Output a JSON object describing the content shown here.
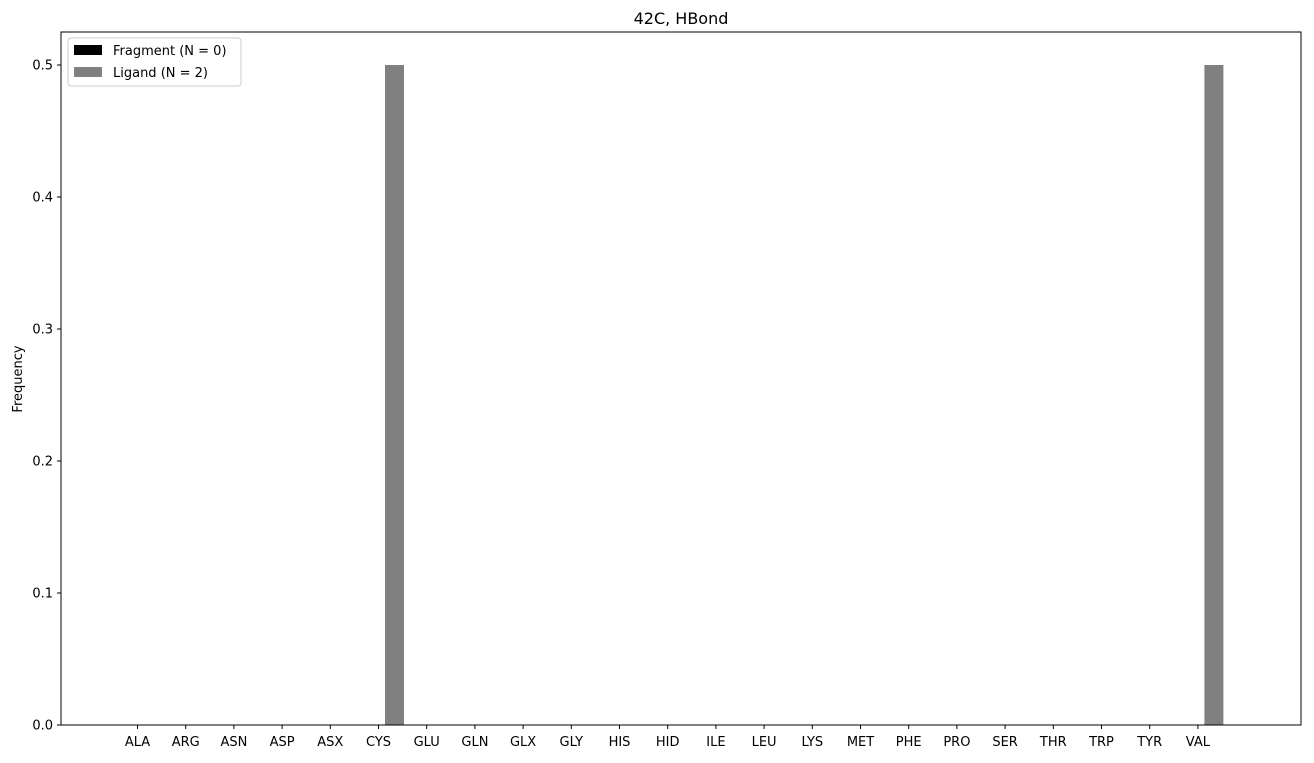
{
  "chart_data": {
    "type": "bar",
    "title": "42C, HBond",
    "xlabel": "",
    "ylabel": "Frequency",
    "ylim": [
      0,
      0.525
    ],
    "yticks": [
      "0.0",
      "0.1",
      "0.2",
      "0.3",
      "0.4",
      "0.5"
    ],
    "categories": [
      "ALA",
      "ARG",
      "ASN",
      "ASP",
      "ASX",
      "CYS",
      "GLU",
      "GLN",
      "GLX",
      "GLY",
      "HIS",
      "HID",
      "ILE",
      "LEU",
      "LYS",
      "MET",
      "PHE",
      "PRO",
      "SER",
      "THR",
      "TRP",
      "TYR",
      "VAL"
    ],
    "series": [
      {
        "name": "Fragment (N = 0)",
        "color": "#000000",
        "values": [
          0,
          0,
          0,
          0,
          0,
          0,
          0,
          0,
          0,
          0,
          0,
          0,
          0,
          0,
          0,
          0,
          0,
          0,
          0,
          0,
          0,
          0,
          0
        ]
      },
      {
        "name": "Ligand (N = 2)",
        "color": "#808080",
        "values": [
          0,
          0,
          0,
          0,
          0,
          0.5,
          0,
          0,
          0,
          0,
          0,
          0,
          0,
          0,
          0,
          0,
          0,
          0,
          0,
          0,
          0,
          0,
          0.5
        ]
      }
    ],
    "legend_position": "top-left",
    "grid": false
  }
}
